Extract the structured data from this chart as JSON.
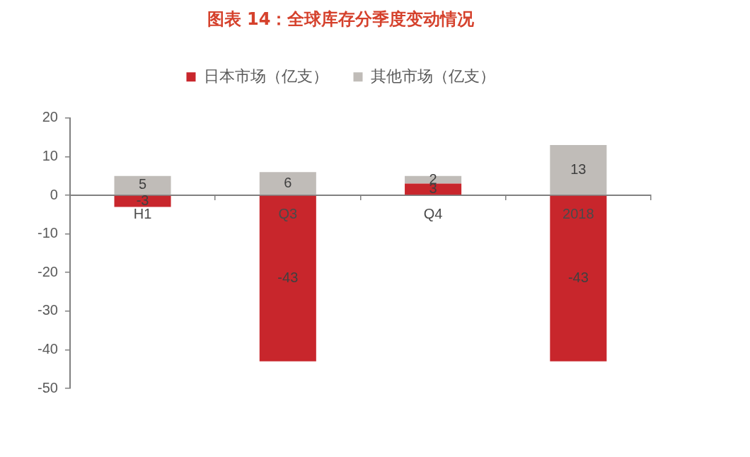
{
  "chart_data": {
    "type": "bar",
    "title": "图表 14：全球库存分季度变动情况",
    "categories": [
      "H1",
      "Q3",
      "Q4",
      "2018"
    ],
    "series": [
      {
        "name": "日本市场（亿支）",
        "color": "#c8262c",
        "values": [
          -3,
          -43,
          3,
          -43
        ]
      },
      {
        "name": "其他市场（亿支）",
        "color": "#c0bcb8",
        "values": [
          5,
          6,
          2,
          13
        ]
      }
    ],
    "stacked": true,
    "ylim": [
      -50,
      20
    ],
    "yticks": [
      -50,
      -40,
      -30,
      -20,
      -10,
      0,
      10,
      20
    ],
    "data_labels": true,
    "legend": "top"
  }
}
